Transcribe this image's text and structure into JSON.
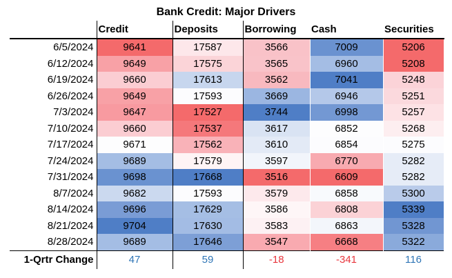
{
  "title": "Bank Credit: Major Drivers",
  "columns": [
    "Credit",
    "Deposits",
    "Borrowing",
    "Cash",
    "Securities"
  ],
  "rows": [
    {
      "date": "6/5/2024",
      "values": [
        "9641",
        "17587",
        "3566",
        "7009",
        "5206"
      ],
      "colors": [
        "#f46a6b",
        "#fde7ea",
        "#f9c2c8",
        "#6a92d0",
        "#f46a6b"
      ]
    },
    {
      "date": "6/12/2024",
      "values": [
        "9649",
        "17575",
        "3565",
        "6960",
        "5208"
      ],
      "colors": [
        "#f8a1a6",
        "#fbd4d8",
        "#f9c3c9",
        "#a4bde4",
        "#f46a6b"
      ]
    },
    {
      "date": "6/19/2024",
      "values": [
        "9660",
        "17613",
        "3562",
        "7041",
        "5248"
      ],
      "colors": [
        "#fbcdd2",
        "#c7d6ee",
        "#f8b9bf",
        "#4f7ec6",
        "#fbd3d8"
      ]
    },
    {
      "date": "6/26/2024",
      "values": [
        "9649",
        "17593",
        "3669",
        "6946",
        "5251"
      ],
      "colors": [
        "#f8a1a6",
        "#fcfcfe",
        "#9bb6e1",
        "#b4c8e9",
        "#fbd9dd"
      ]
    },
    {
      "date": "7/3/2024",
      "values": [
        "9647",
        "17527",
        "3744",
        "6998",
        "5257"
      ],
      "colors": [
        "#f89aa0",
        "#f46a6b",
        "#4f7ec6",
        "#7398d3",
        "#fde2e5"
      ]
    },
    {
      "date": "7/10/2024",
      "values": [
        "9660",
        "17537",
        "3617",
        "6852",
        "5268"
      ],
      "colors": [
        "#fbcdd2",
        "#f5787b",
        "#d9e3f3",
        "#fdfdfe",
        "#fdeef0"
      ]
    },
    {
      "date": "7/17/2024",
      "values": [
        "9671",
        "17562",
        "3610",
        "6854",
        "5275"
      ],
      "colors": [
        "#fdfdfe",
        "#f9b2b8",
        "#e3eaf6",
        "#fcfcfe",
        "#fcfcfe"
      ]
    },
    {
      "date": "7/24/2024",
      "values": [
        "9689",
        "17579",
        "3597",
        "6770",
        "5282"
      ],
      "colors": [
        "#a4bde4",
        "#fef4f5",
        "#f2f5fb",
        "#f8aab0",
        "#e6ecf7"
      ]
    },
    {
      "date": "7/31/2024",
      "values": [
        "9698",
        "17668",
        "3516",
        "6609",
        "5282"
      ],
      "colors": [
        "#6a92d0",
        "#4f7ec6",
        "#f46a6b",
        "#f46a6b",
        "#e6ecf7"
      ]
    },
    {
      "date": "8/7/2024",
      "values": [
        "9682",
        "17593",
        "3579",
        "6858",
        "5300"
      ],
      "colors": [
        "#cbd9ef",
        "#fcfcfe",
        "#fde9ec",
        "#f8fafd",
        "#b9cbea"
      ]
    },
    {
      "date": "8/14/2024",
      "values": [
        "9696",
        "17629",
        "3586",
        "6808",
        "5339"
      ],
      "colors": [
        "#7a9cd5",
        "#a5bee4",
        "#fef6f7",
        "#fbd2d6",
        "#4f7ec6"
      ]
    },
    {
      "date": "8/21/2024",
      "values": [
        "9704",
        "17630",
        "3583",
        "6863",
        "5328"
      ],
      "colors": [
        "#4f7ec6",
        "#a3bce4",
        "#fdf1f3",
        "#f3f6fb",
        "#7196d2"
      ]
    },
    {
      "date": "8/28/2024",
      "values": [
        "9689",
        "17646",
        "3547",
        "6668",
        "5322"
      ],
      "colors": [
        "#a4bde4",
        "#7d9fd6",
        "#f9aab0",
        "#f67f83",
        "#8aaadb"
      ]
    }
  ],
  "change": {
    "label": "1-Qrtr Change",
    "values": [
      "47",
      "59",
      "-18",
      "-341",
      "116"
    ]
  }
}
